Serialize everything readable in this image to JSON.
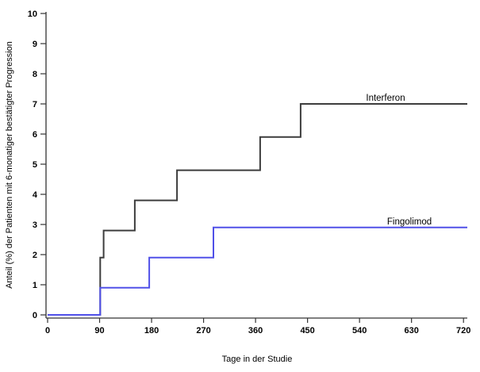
{
  "chart_data": {
    "type": "line",
    "subtype": "step",
    "title": "",
    "xlabel": "Tage in der Studie",
    "ylabel": "Anteil (%) der Patienten mit 6-monatiger bestätigter Progression",
    "xlim": [
      0,
      720
    ],
    "ylim": [
      0,
      10
    ],
    "x_ticks": [
      0,
      90,
      180,
      270,
      360,
      450,
      540,
      630,
      720
    ],
    "y_ticks": [
      0,
      1,
      2,
      3,
      4,
      5,
      6,
      7,
      8,
      9,
      10
    ],
    "grid": false,
    "legend_position": "inline-labels-above-line",
    "background_color": "#ffffff",
    "axis_color": "#333333",
    "series": [
      {
        "name": "Interferon",
        "color": "#3d3d3d",
        "points": [
          [
            0,
            0
          ],
          [
            91,
            0
          ],
          [
            91,
            1.9
          ],
          [
            97,
            1.9
          ],
          [
            97,
            2.8
          ],
          [
            151,
            2.8
          ],
          [
            151,
            3.8
          ],
          [
            224,
            3.8
          ],
          [
            224,
            4.8
          ],
          [
            368,
            4.8
          ],
          [
            368,
            5.9
          ],
          [
            438,
            5.9
          ],
          [
            438,
            7.0
          ],
          [
            720,
            7.0
          ]
        ]
      },
      {
        "name": "Fingolimod",
        "color": "#5050e8",
        "points": [
          [
            0,
            0
          ],
          [
            91,
            0
          ],
          [
            91,
            0.9
          ],
          [
            176,
            0.9
          ],
          [
            176,
            1.9
          ],
          [
            287,
            1.9
          ],
          [
            287,
            2.9
          ],
          [
            720,
            2.9
          ]
        ]
      }
    ]
  }
}
